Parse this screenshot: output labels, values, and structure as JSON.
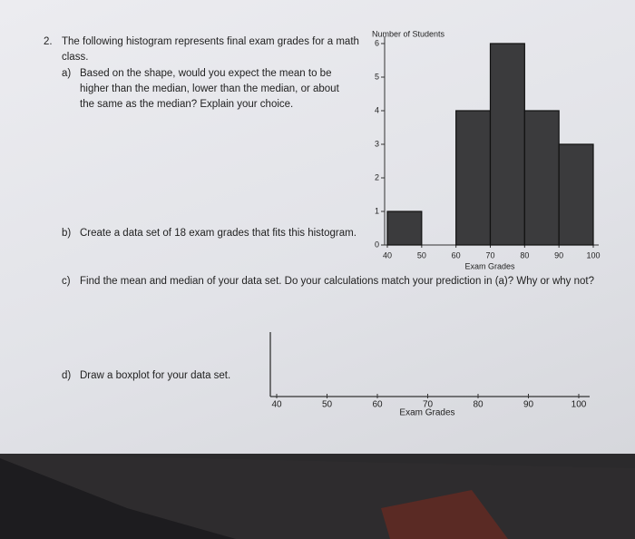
{
  "question": {
    "number": "2.",
    "intro": "The following histogram represents final exam grades for a math class.",
    "parts": [
      {
        "label": "a)",
        "text": "Based on the shape, would you expect the mean to be higher than the median, lower than the median, or about the same as the median? Explain your choice."
      },
      {
        "label": "b)",
        "text": "Create a data set of 18 exam grades that fits this histogram."
      },
      {
        "label": "c)",
        "text": "Find the mean and median of your data set. Do your calculations match your prediction in (a)? Why or why not?"
      },
      {
        "label": "d)",
        "text": "Draw a boxplot for your data set."
      }
    ]
  },
  "chart_data": {
    "type": "histogram",
    "ylabel": "Number of Students",
    "xlabel": "Exam Grades",
    "bins": [
      40,
      50,
      60,
      70,
      80,
      90,
      100
    ],
    "values": [
      1,
      0,
      4,
      6,
      4,
      3
    ],
    "color": "#3b3b3d",
    "xlim": [
      40,
      100
    ],
    "ylim": [
      0,
      6
    ],
    "xticks": [
      40,
      50,
      60,
      70,
      80,
      90,
      100
    ],
    "yticks": [
      0,
      1,
      2,
      3,
      4,
      5,
      6
    ]
  },
  "boxplot_axis": {
    "xlabel": "Exam Grades",
    "xlim": [
      40,
      100
    ],
    "xticks": [
      40,
      50,
      60,
      70,
      80,
      90,
      100
    ]
  }
}
